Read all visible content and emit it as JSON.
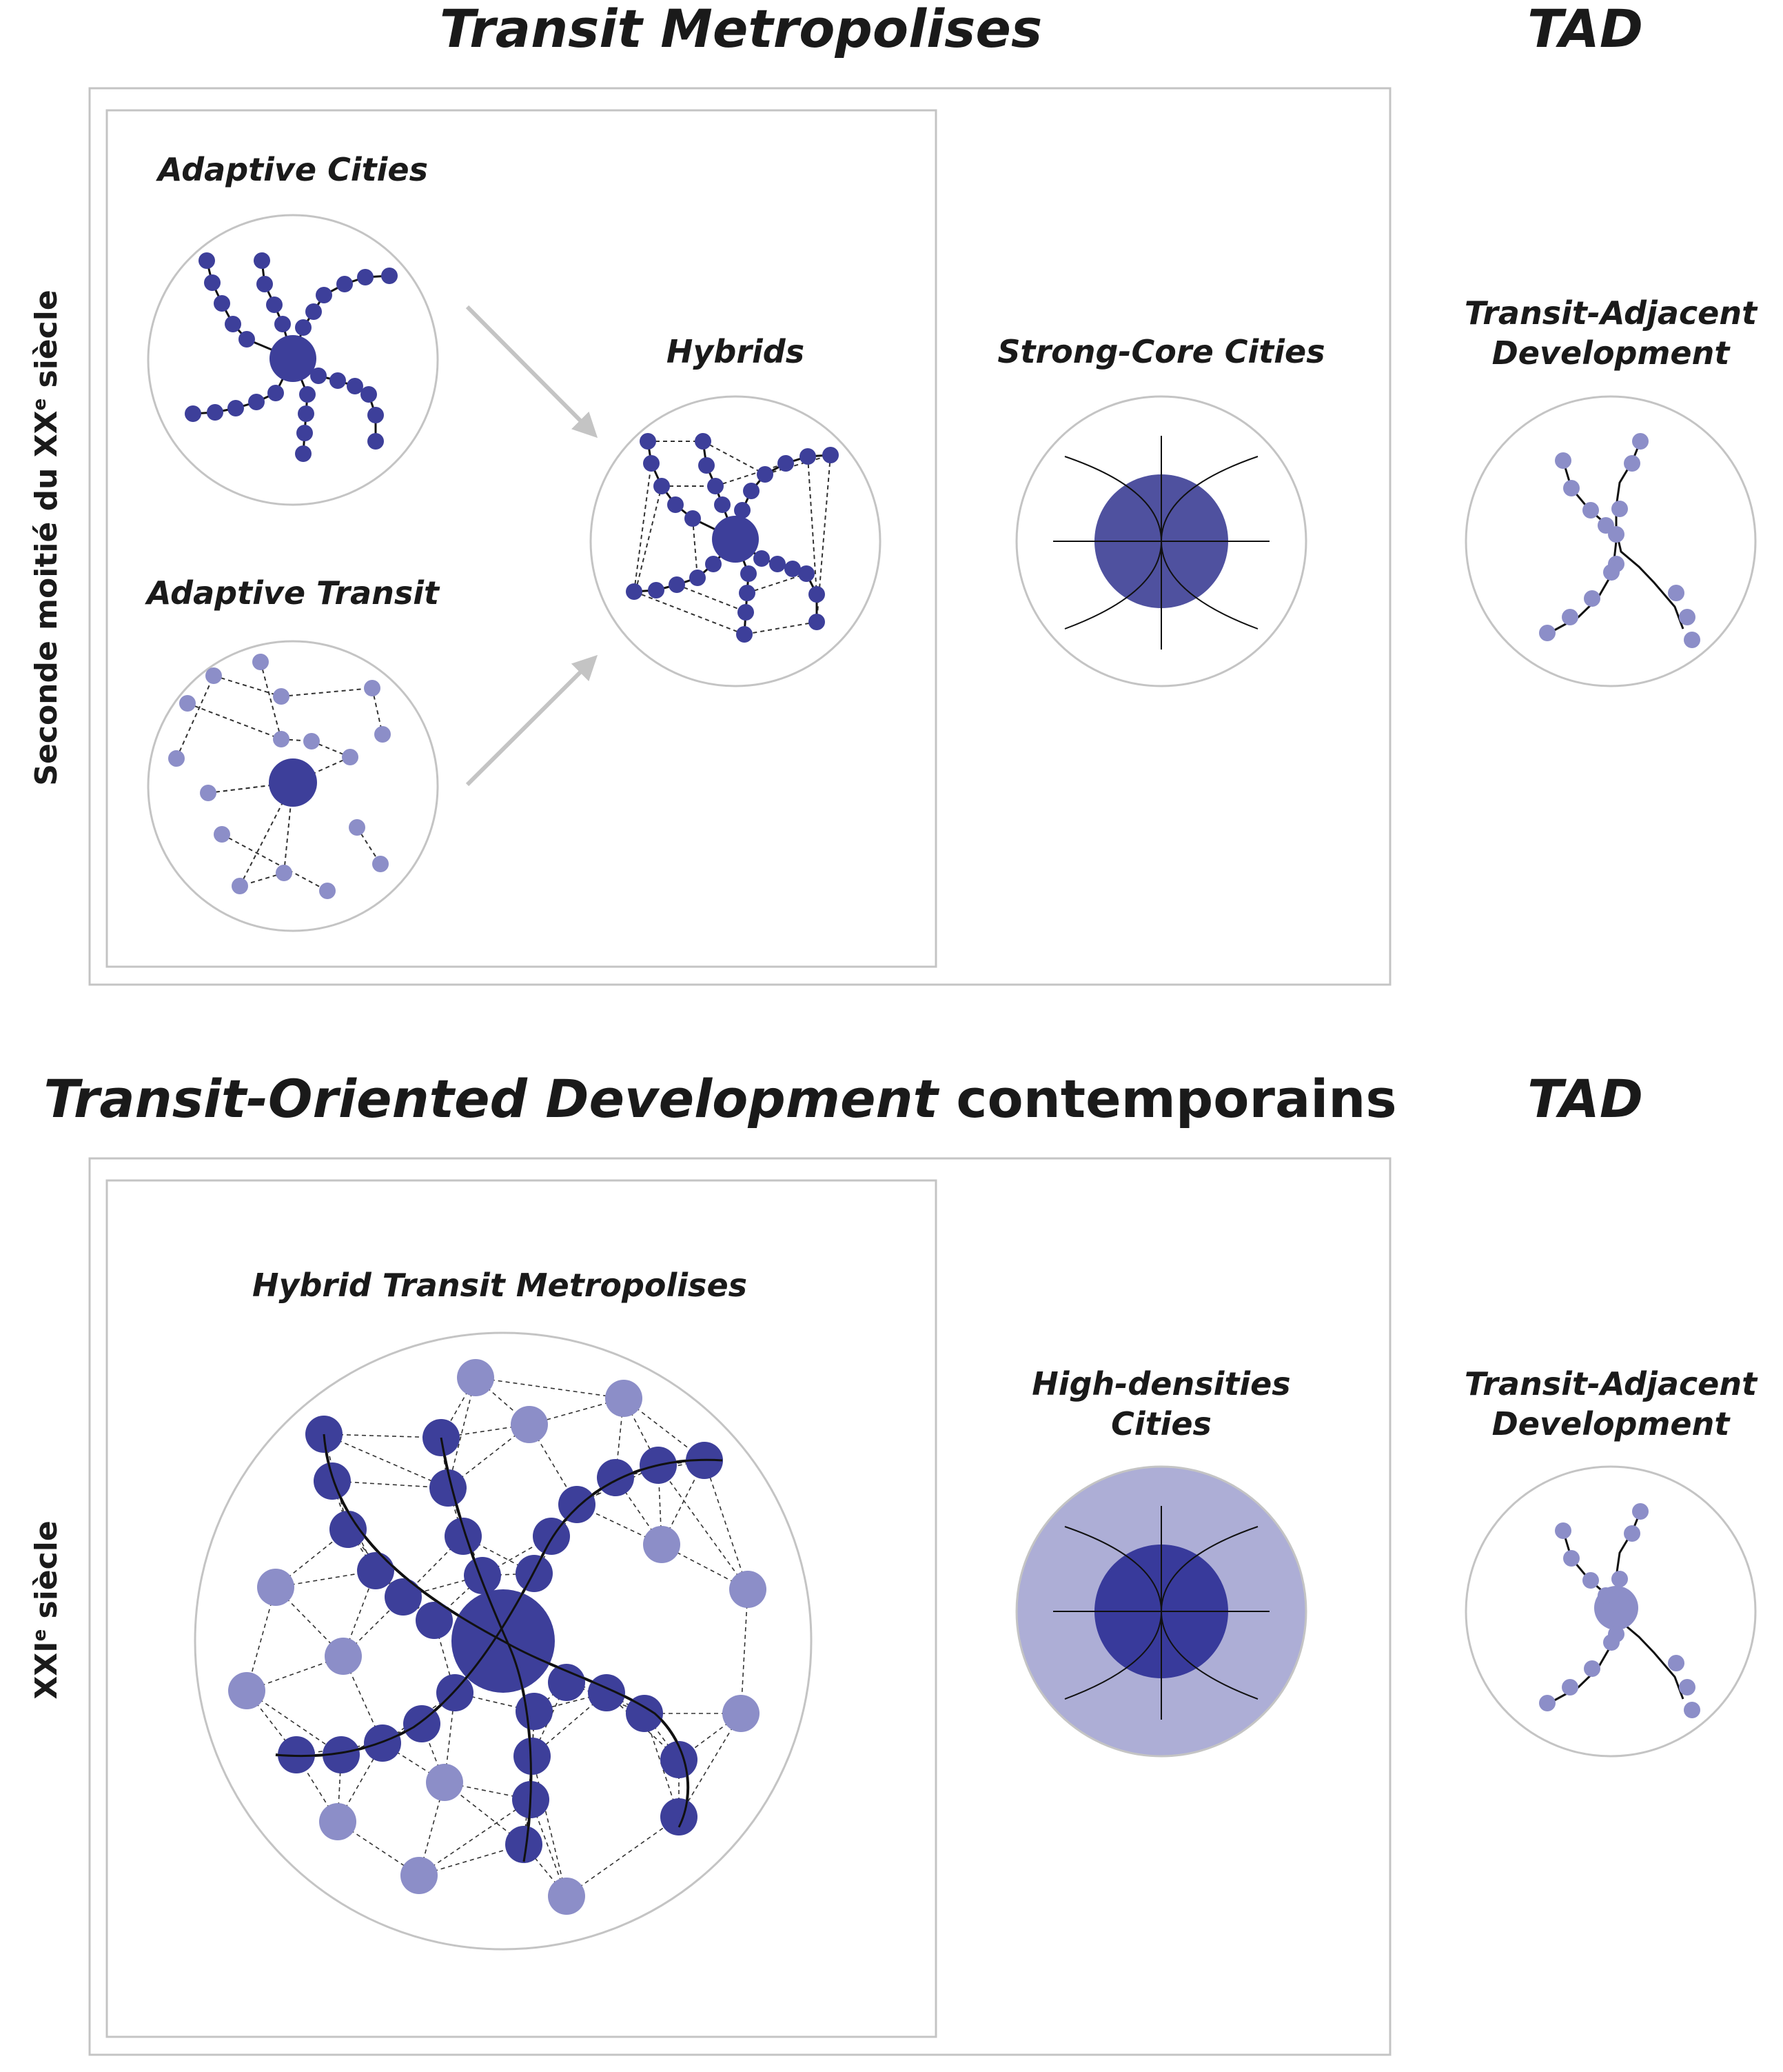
{
  "top": {
    "heading": "Transit Metropolises",
    "tad_heading": "TAD",
    "side_label": "Seconde moitié du XX",
    "side_label_sup": "e",
    "side_label_end": " siècle",
    "adaptive_cities": "Adaptive Cities",
    "adaptive_transit": "Adaptive Transit",
    "hybrids": "Hybrids",
    "strong_core": "Strong-Core Cities",
    "tad_line1": "Transit-Adjacent",
    "tad_line2": "Development"
  },
  "bottom": {
    "heading_italic": "Transit-Oriented Development",
    "heading_normal": " contemporains",
    "tad_heading": "TAD",
    "side_label": "XXI",
    "side_label_sup": "e",
    "side_label_end": " siècle",
    "hybrid_metro": "Hybrid Transit Metropolises",
    "hd_line1": "High-densities",
    "hd_line2": "Cities",
    "tad_line1": "Transit-Adjacent",
    "tad_line2": "Development"
  },
  "colors": {
    "dark_node": "#3d3f9a",
    "light_node": "#8c8ec8",
    "pale_fill": "#adaed6",
    "frame": "#c4c4c4",
    "arrow": "#c4c4c4"
  }
}
